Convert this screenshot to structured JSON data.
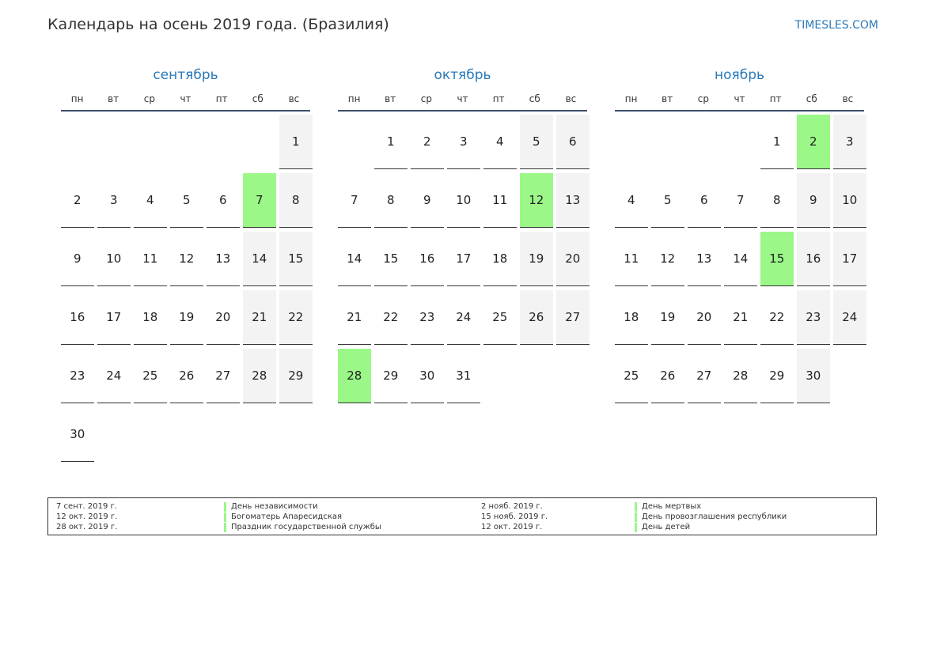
{
  "header": {
    "title": "Календарь на осень 2019 года. (Бразилия)",
    "site": "TIMESLES.COM"
  },
  "colors": {
    "accent": "#2a79b8",
    "holiday": "#9af788",
    "weekend": "#f3f3f3",
    "rule": "#3c4e6c"
  },
  "weekdays": [
    "пн",
    "вт",
    "ср",
    "чт",
    "пт",
    "сб",
    "вс"
  ],
  "months": [
    {
      "name": "сентябрь",
      "start_offset": 6,
      "days": 30,
      "holidays": [
        7
      ]
    },
    {
      "name": "октябрь",
      "start_offset": 1,
      "days": 31,
      "holidays": [
        12,
        28
      ]
    },
    {
      "name": "ноябрь",
      "start_offset": 4,
      "days": 30,
      "holidays": [
        2,
        15
      ]
    }
  ],
  "legend": [
    {
      "date": "7 сент. 2019 г.",
      "name": "День независимости"
    },
    {
      "date": "12 окт. 2019 г.",
      "name": "Богоматерь Апаресидская"
    },
    {
      "date": "28 окт. 2019 г.",
      "name": "Праздник государственной службы"
    },
    {
      "date": "2 нояб. 2019 г.",
      "name": "День мертвых"
    },
    {
      "date": "15 нояб. 2019 г.",
      "name": "День провозглашения республики"
    },
    {
      "date": "12 окт. 2019 г.",
      "name": "День детей"
    }
  ]
}
